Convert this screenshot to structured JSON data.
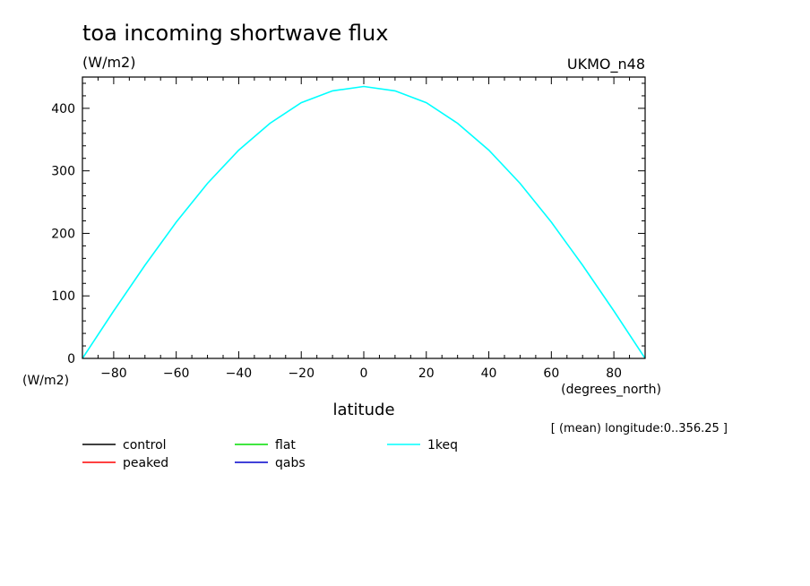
{
  "chart_data": {
    "type": "line",
    "title": "toa incoming shortwave flux",
    "units": "(W/m2)",
    "source": "UKMO_n48",
    "xlabel": "latitude",
    "x_units": "(degrees_north)",
    "y_units": "(W/m2)",
    "averaging_note": "[ (mean) longitude:0..356.25 ]",
    "xlim": [
      -90,
      90
    ],
    "ylim": [
      0,
      450
    ],
    "x_ticks": [
      -80,
      -60,
      -40,
      -20,
      0,
      20,
      40,
      60,
      80
    ],
    "y_ticks": [
      0,
      100,
      200,
      300,
      400
    ],
    "grid": false,
    "legend_position": "below",
    "x": [
      -90,
      -80,
      -70,
      -60,
      -50,
      -40,
      -30,
      -20,
      -10,
      0,
      10,
      20,
      30,
      40,
      50,
      60,
      70,
      80,
      90
    ],
    "series": [
      {
        "name": "control",
        "color": "#000000",
        "values": null
      },
      {
        "name": "flat",
        "color": "#00dd00",
        "values": null
      },
      {
        "name": "1keq",
        "color": "#00ffff",
        "values": [
          0,
          76,
          149,
          218,
          280,
          333,
          376,
          409,
          428,
          435,
          428,
          409,
          376,
          333,
          280,
          218,
          149,
          76,
          0
        ]
      },
      {
        "name": "peaked",
        "color": "#ff0000",
        "values": null
      },
      {
        "name": "qabs",
        "color": "#0000cc",
        "values": null
      }
    ]
  }
}
